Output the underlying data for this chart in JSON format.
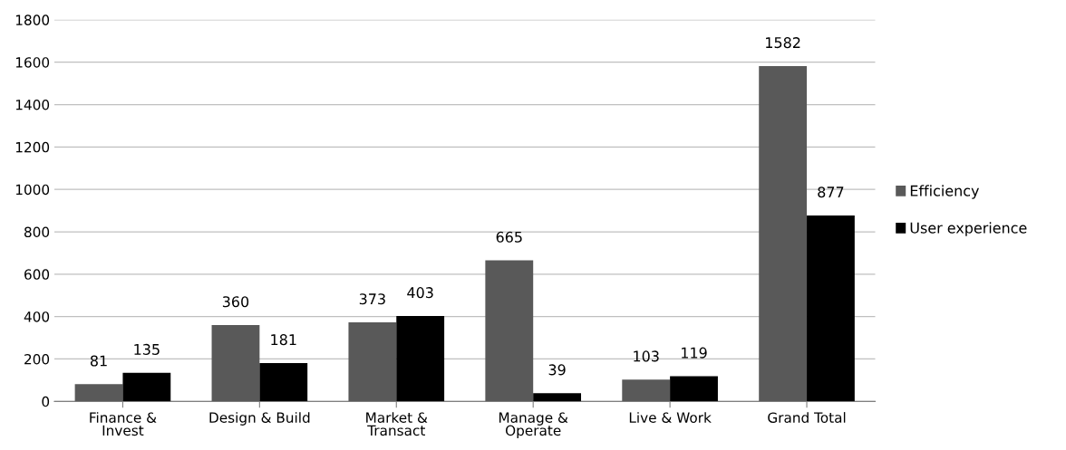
{
  "chart_data": {
    "type": "bar",
    "categories": [
      "Finance &\nInvest",
      "Design & Build",
      "Market &\nTransact",
      "Manage &\nOperate",
      "Live & Work",
      "Grand Total"
    ],
    "series": [
      {
        "name": "Efficiency",
        "color": "#595959",
        "values": [
          81,
          360,
          373,
          665,
          103,
          1582
        ]
      },
      {
        "name": "User experience",
        "color": "#000000",
        "values": [
          135,
          181,
          403,
          39,
          119,
          877
        ]
      }
    ],
    "ylim": [
      0,
      1800
    ],
    "yticks": [
      0,
      200,
      400,
      600,
      800,
      1000,
      1200,
      1400,
      1600,
      1800
    ],
    "grid": "y",
    "legend": "right",
    "data_labels": true
  }
}
